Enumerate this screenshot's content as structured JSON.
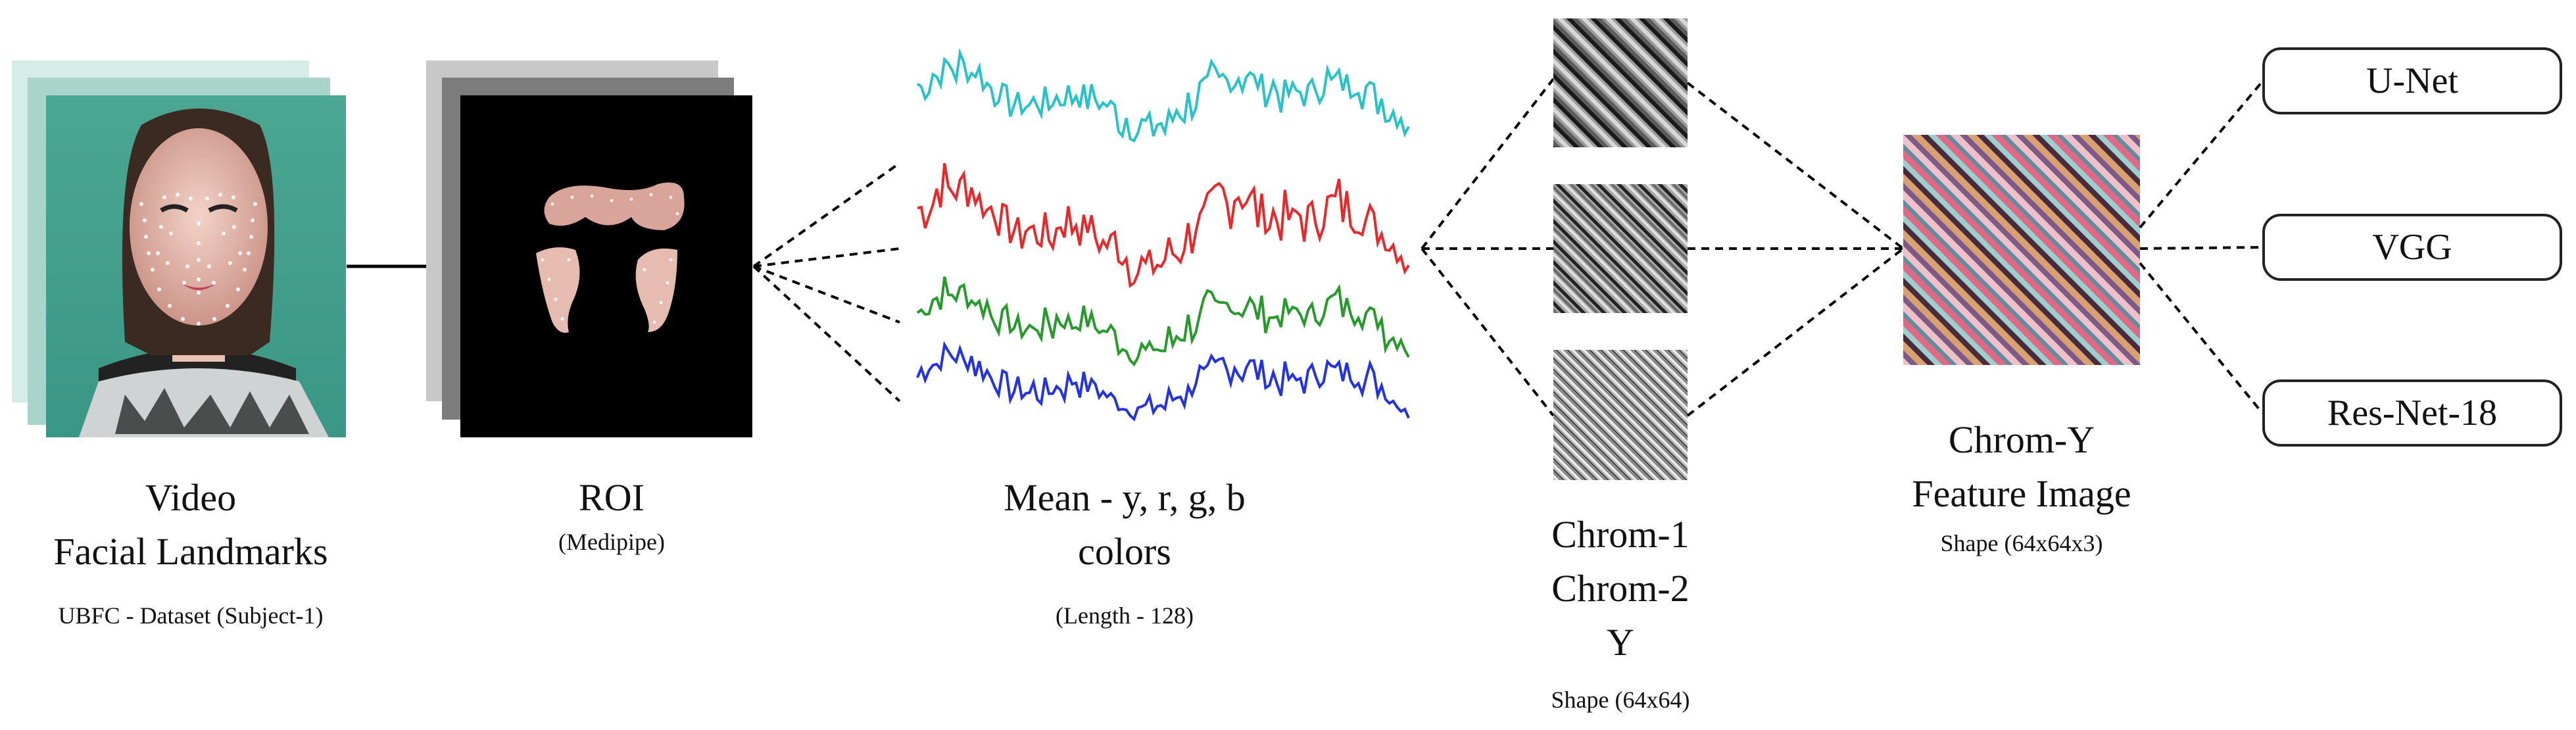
{
  "stages": {
    "video": {
      "title_line1": "Video",
      "title_line2": "Facial Landmarks",
      "caption": "UBFC - Dataset (Subject-1)"
    },
    "roi": {
      "title": "ROI",
      "caption": "(Medipipe)"
    },
    "signals": {
      "title_line1": "Mean - y, r, g, b",
      "title_line2": "colors",
      "caption": "(Length - 128)",
      "series_colors": [
        "#27c3c8",
        "#e8282a",
        "#269a2a",
        "#2432e6"
      ]
    },
    "chrom": {
      "line1": "Chrom-1",
      "line2": "Chrom-2",
      "line3": "Y",
      "caption": "Shape (64x64)"
    },
    "feature": {
      "title_line1": "Chrom-Y",
      "title_line2": "Feature Image",
      "caption": "Shape (64x64x3)"
    },
    "models": [
      {
        "label": "U-Net"
      },
      {
        "label": "VGG"
      },
      {
        "label": "Res-Net-18"
      }
    ]
  }
}
